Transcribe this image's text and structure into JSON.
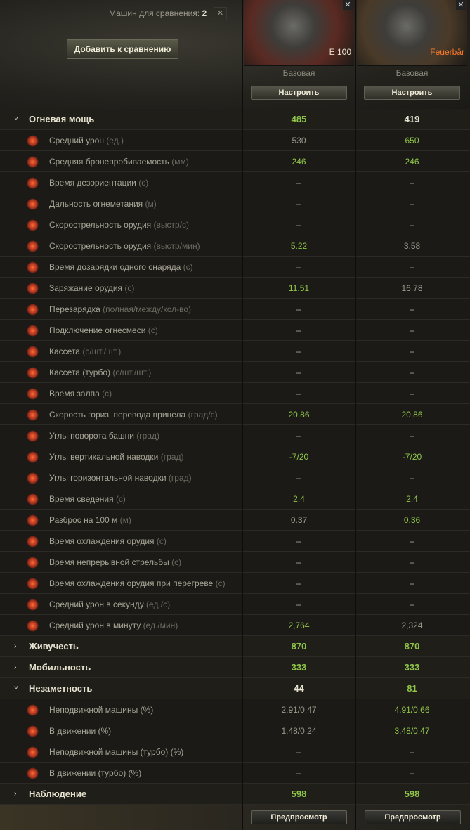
{
  "header": {
    "compare_label": "Машин для сравнения:",
    "compare_count": "2",
    "clear_icon": "close-icon",
    "add_button": "Добавить к сравнению"
  },
  "vehicles": [
    {
      "name": "E 100",
      "name_color": "#e6e2cf",
      "config": "Базовая",
      "setup_button": "Настроить",
      "preview_button": "Предпросмотр",
      "bg": "#5a2a22"
    },
    {
      "name": "Feuerbär",
      "name_color": "#ff7a2a",
      "config": "Базовая",
      "setup_button": "Настроить",
      "preview_button": "Предпросмотр",
      "bg": "#4a3a28"
    }
  ],
  "colors": {
    "better": "#8fc649",
    "neutral": "#9d9a8c",
    "category": "#e6e2cf"
  },
  "rows": [
    {
      "type": "cat",
      "expanded": true,
      "label": "Огневая мощь",
      "values": [
        "485",
        "419"
      ],
      "green": [
        1,
        0
      ]
    },
    {
      "label": "Средний урон",
      "unit": "(ед.)",
      "values": [
        "530",
        "650"
      ],
      "green": [
        0,
        1
      ]
    },
    {
      "label": "Средняя бронепробиваемость",
      "unit": "(мм)",
      "values": [
        "246",
        "246"
      ],
      "green": [
        1,
        1
      ]
    },
    {
      "label": "Время дезориентации",
      "unit": "(с)",
      "values": [
        "--",
        "--"
      ],
      "green": [
        0,
        0
      ]
    },
    {
      "label": "Дальность огнеметания",
      "unit": "(м)",
      "values": [
        "--",
        "--"
      ],
      "green": [
        0,
        0
      ]
    },
    {
      "label": "Скорострельность орудия",
      "unit": "(выстр/с)",
      "values": [
        "--",
        "--"
      ],
      "green": [
        0,
        0
      ]
    },
    {
      "label": "Скорострельность орудия",
      "unit": "(выстр/мин)",
      "values": [
        "5.22",
        "3.58"
      ],
      "green": [
        1,
        0
      ]
    },
    {
      "label": "Время дозарядки одного снаряда",
      "unit": "(с)",
      "values": [
        "--",
        "--"
      ],
      "green": [
        0,
        0
      ]
    },
    {
      "label": "Заряжание орудия",
      "unit": "(с)",
      "values": [
        "11.51",
        "16.78"
      ],
      "green": [
        1,
        0
      ]
    },
    {
      "label": "Перезарядка",
      "unit": "(полная/между/кол-во)",
      "values": [
        "--",
        "--"
      ],
      "green": [
        0,
        0
      ]
    },
    {
      "label": "Подключение огнесмеси",
      "unit": "(с)",
      "values": [
        "--",
        "--"
      ],
      "green": [
        0,
        0
      ]
    },
    {
      "label": "Кассета",
      "unit": "(с/шт./шт.)",
      "values": [
        "--",
        "--"
      ],
      "green": [
        0,
        0
      ]
    },
    {
      "label": "Кассета (турбо)",
      "unit": "(с/шт./шт.)",
      "values": [
        "--",
        "--"
      ],
      "green": [
        0,
        0
      ]
    },
    {
      "label": "Время залпа",
      "unit": "(с)",
      "values": [
        "--",
        "--"
      ],
      "green": [
        0,
        0
      ]
    },
    {
      "label": "Скорость гориз. перевода прицела",
      "unit": "(град/с)",
      "values": [
        "20.86",
        "20.86"
      ],
      "green": [
        1,
        1
      ]
    },
    {
      "label": "Углы поворота башни",
      "unit": "(град)",
      "values": [
        "--",
        "--"
      ],
      "green": [
        0,
        0
      ]
    },
    {
      "label": "Углы вертикальной наводки",
      "unit": "(град)",
      "values": [
        "-7/20",
        "-7/20"
      ],
      "green": [
        1,
        1
      ]
    },
    {
      "label": "Углы горизонтальной наводки",
      "unit": "(град)",
      "values": [
        "--",
        "--"
      ],
      "green": [
        0,
        0
      ]
    },
    {
      "label": "Время сведения",
      "unit": "(с)",
      "values": [
        "2.4",
        "2.4"
      ],
      "green": [
        1,
        1
      ]
    },
    {
      "label": "Разброс на 100 м",
      "unit": "(м)",
      "values": [
        "0.37",
        "0.36"
      ],
      "green": [
        0,
        1
      ]
    },
    {
      "label": "Время охлаждения орудия",
      "unit": "(с)",
      "values": [
        "--",
        "--"
      ],
      "green": [
        0,
        0
      ]
    },
    {
      "label": "Время непрерывной стрельбы",
      "unit": "(с)",
      "values": [
        "--",
        "--"
      ],
      "green": [
        0,
        0
      ]
    },
    {
      "label": "Время охлаждения орудия при перегреве",
      "unit": "(с)",
      "values": [
        "--",
        "--"
      ],
      "green": [
        0,
        0
      ]
    },
    {
      "label": "Средний урон в секунду",
      "unit": "(ед./с)",
      "values": [
        "--",
        "--"
      ],
      "green": [
        0,
        0
      ]
    },
    {
      "label": "Средний урон в минуту",
      "unit": "(ед./мин)",
      "values": [
        "2,764",
        "2,324"
      ],
      "green": [
        1,
        0
      ]
    },
    {
      "type": "cat",
      "expanded": false,
      "label": "Живучесть",
      "values": [
        "870",
        "870"
      ],
      "green": [
        1,
        1
      ]
    },
    {
      "type": "cat",
      "expanded": false,
      "label": "Мобильность",
      "values": [
        "333",
        "333"
      ],
      "green": [
        1,
        1
      ]
    },
    {
      "type": "cat",
      "expanded": true,
      "label": "Незаметность",
      "values": [
        "44",
        "81"
      ],
      "green": [
        0,
        1
      ]
    },
    {
      "label": "Неподвижной машины (%)",
      "unit": "",
      "values": [
        "2.91/0.47",
        "4.91/0.66"
      ],
      "green": [
        0,
        1
      ]
    },
    {
      "label": "В движении (%)",
      "unit": "",
      "values": [
        "1.48/0.24",
        "3.48/0.47"
      ],
      "green": [
        0,
        1
      ]
    },
    {
      "label": "Неподвижной машины (турбо) (%)",
      "unit": "",
      "values": [
        "--",
        "--"
      ],
      "green": [
        0,
        0
      ]
    },
    {
      "label": "В движении (турбо) (%)",
      "unit": "",
      "values": [
        "--",
        "--"
      ],
      "green": [
        0,
        0
      ]
    },
    {
      "type": "cat",
      "expanded": false,
      "label": "Наблюдение",
      "values": [
        "598",
        "598"
      ],
      "green": [
        1,
        1
      ]
    }
  ]
}
